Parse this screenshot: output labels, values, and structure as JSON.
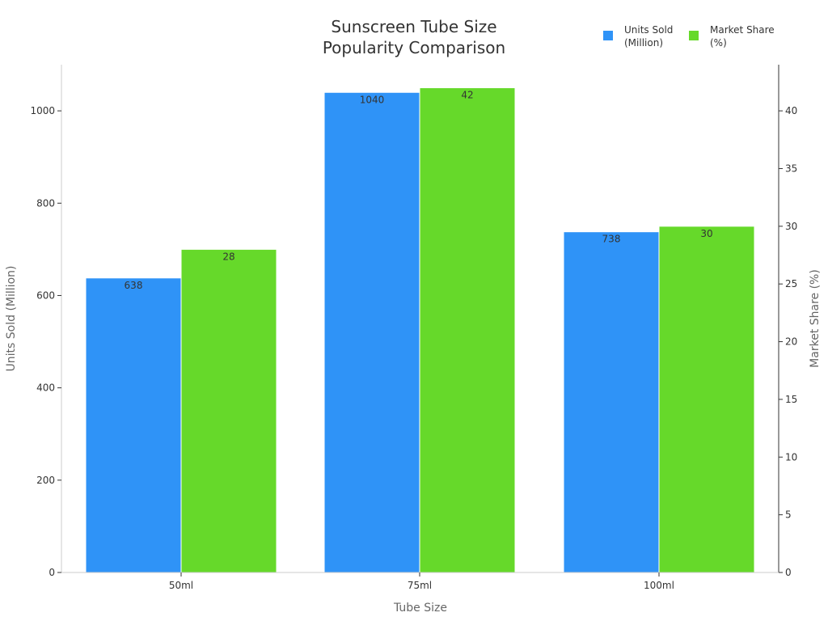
{
  "chart_data": {
    "type": "bar",
    "title_lines": [
      "Sunscreen Tube Size",
      "Popularity Comparison"
    ],
    "xlabel": "Tube Size",
    "ylabel_left": "Units Sold (Million)",
    "ylabel_right": "Market Share (%)",
    "categories": [
      "50ml",
      "75ml",
      "100ml"
    ],
    "ylim_left": [
      0,
      1100
    ],
    "ylim_right": [
      0,
      44
    ],
    "yticks_left": [
      0,
      200,
      400,
      600,
      800,
      1000
    ],
    "yticks_right": [
      0,
      5,
      10,
      15,
      20,
      25,
      30,
      35,
      40
    ],
    "legend_position": "top-right",
    "grid": false,
    "series": [
      {
        "name_lines": [
          "Units Sold",
          "(Million)"
        ],
        "axis": "left",
        "color": "#2f93f7",
        "values": [
          638,
          1040,
          738
        ]
      },
      {
        "name_lines": [
          "Market Share",
          "(%)"
        ],
        "axis": "right",
        "color": "#66d92a",
        "values": [
          28,
          42,
          30
        ]
      }
    ]
  }
}
